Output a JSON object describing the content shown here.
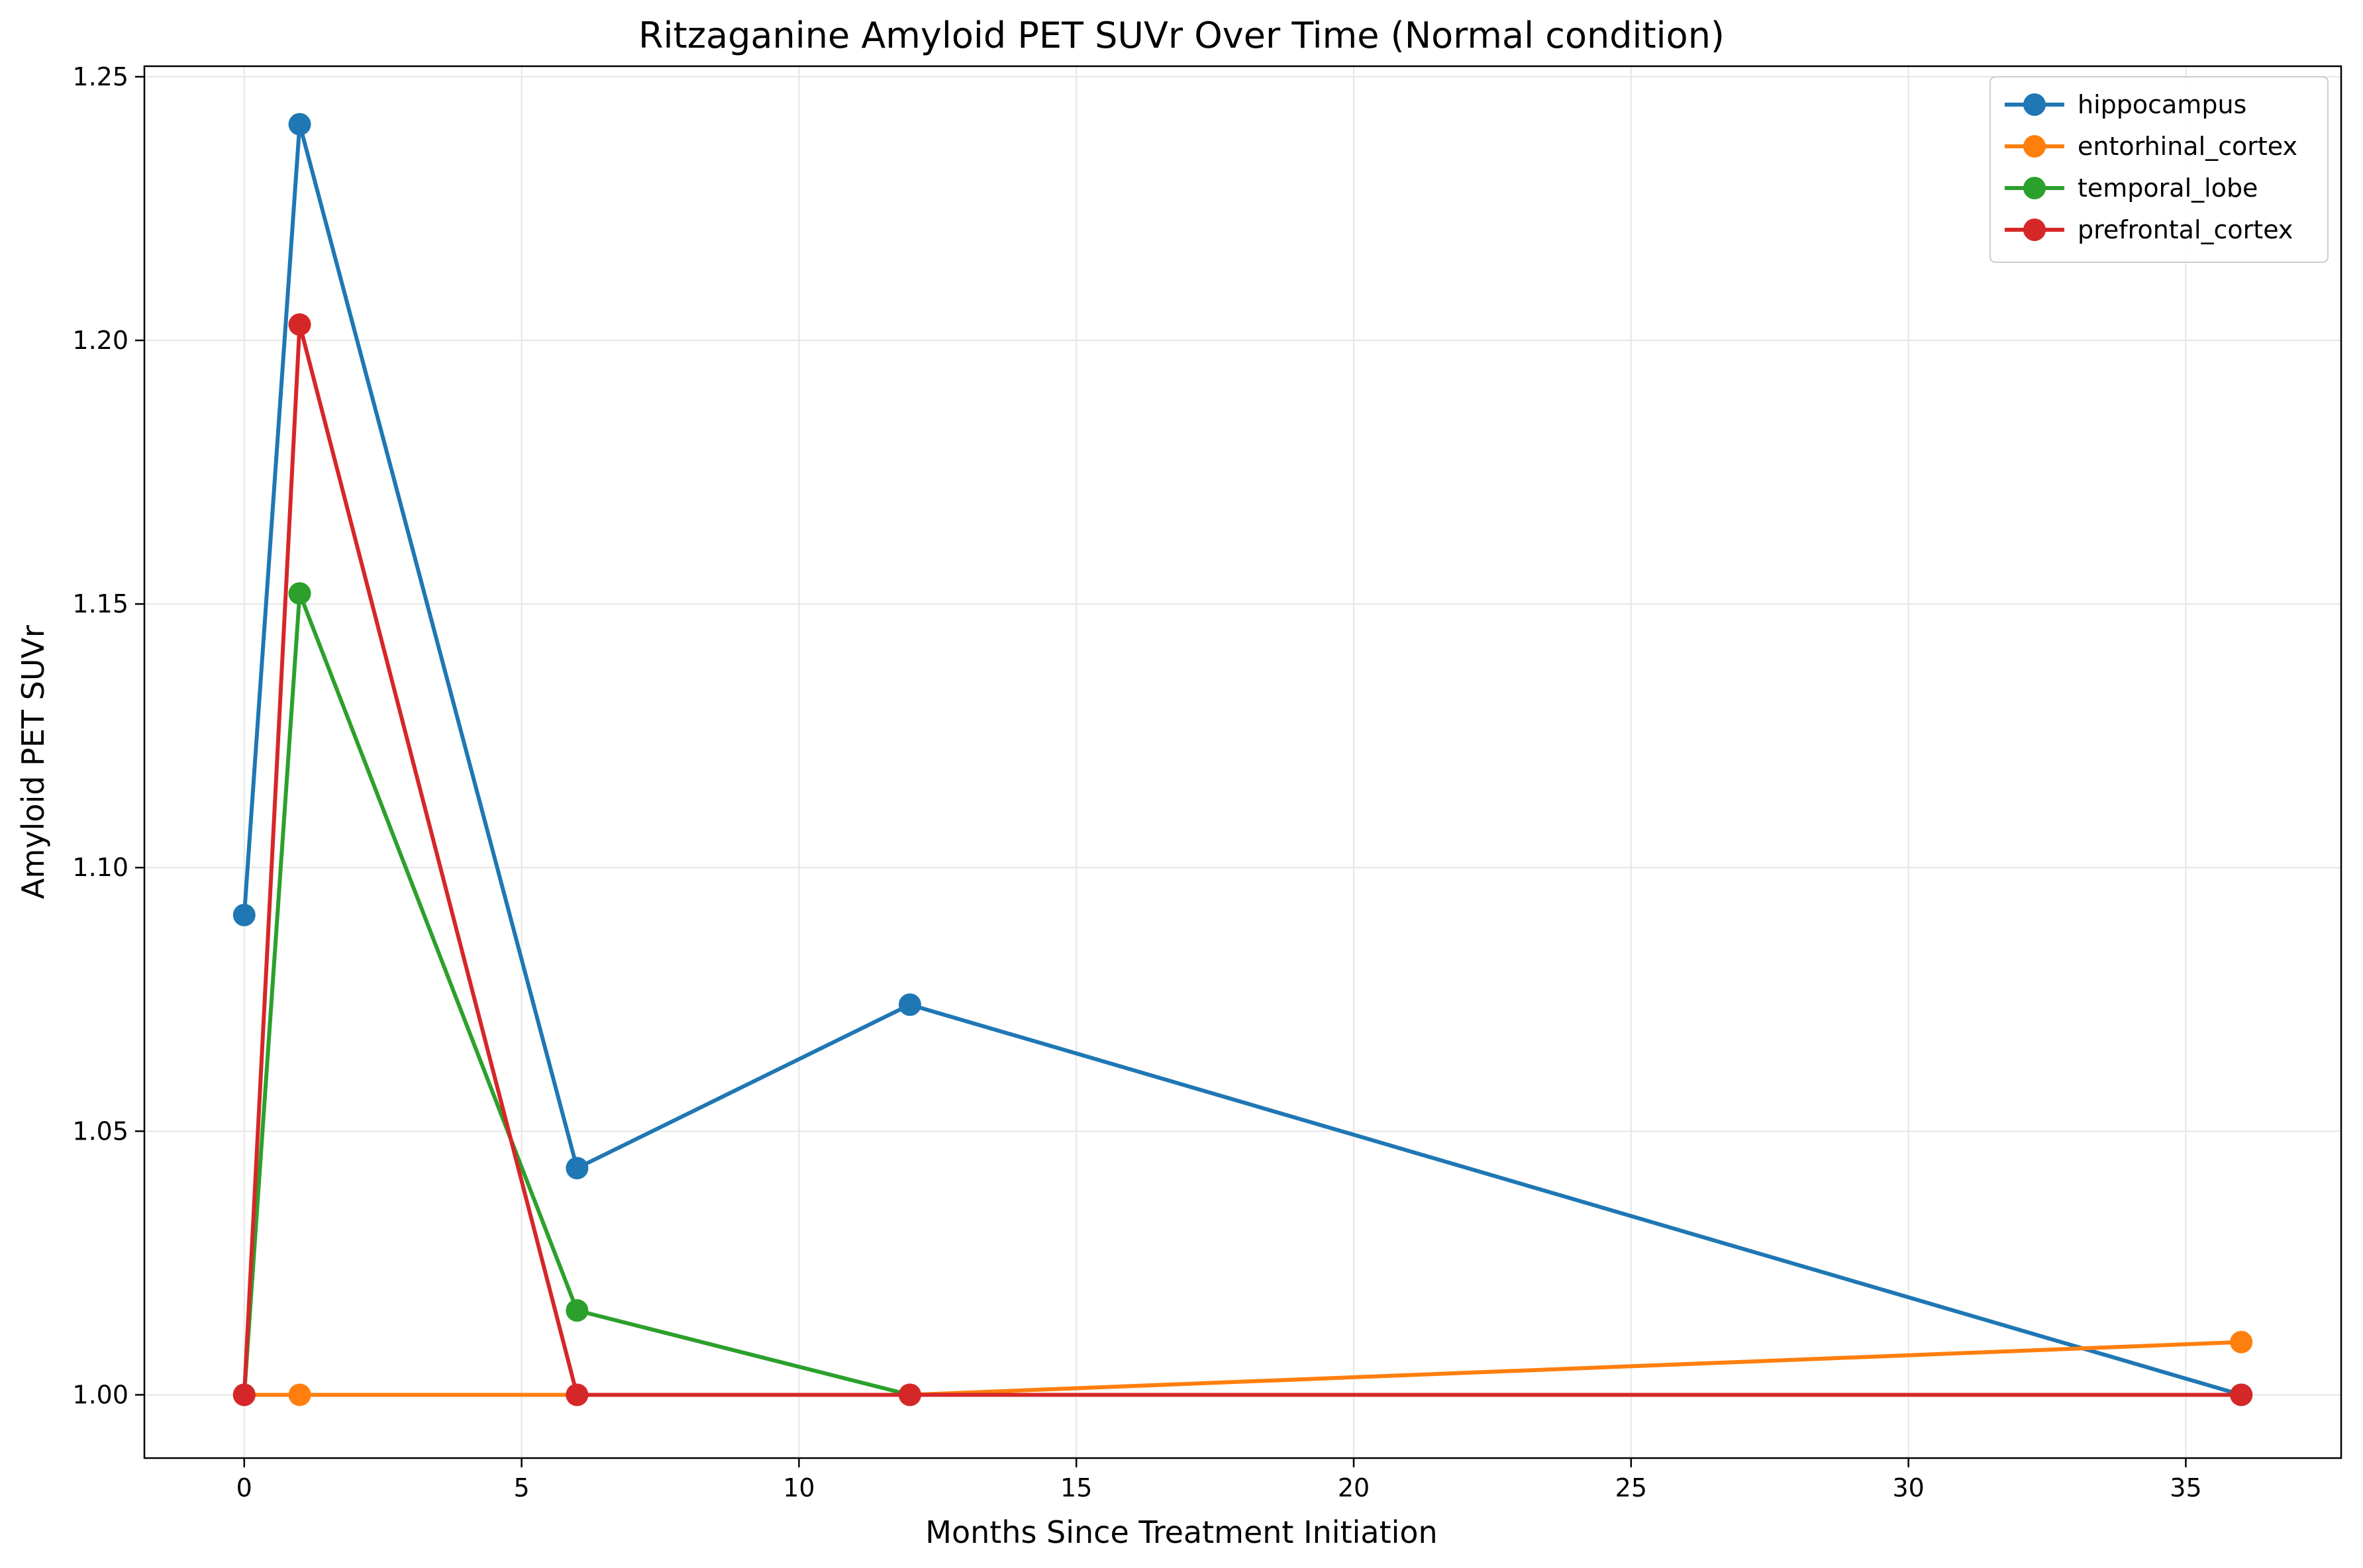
{
  "chart_data": {
    "type": "line",
    "title": "Ritzaganine Amyloid PET SUVr Over Time (Normal condition)",
    "xlabel": "Months Since Treatment Initiation",
    "ylabel": "Amyloid PET SUVr",
    "xlim": [
      -1.8,
      37.8
    ],
    "ylim": [
      0.988,
      1.252
    ],
    "xticks": [
      0,
      5,
      10,
      15,
      20,
      25,
      30,
      35
    ],
    "yticks": [
      1.0,
      1.05,
      1.1,
      1.15,
      1.2,
      1.25
    ],
    "xtick_labels": [
      "0",
      "5",
      "10",
      "15",
      "20",
      "25",
      "30",
      "35"
    ],
    "ytick_labels": [
      "1.00",
      "1.05",
      "1.10",
      "1.15",
      "1.20",
      "1.25"
    ],
    "grid": true,
    "legend_position": "top-right",
    "series": [
      {
        "name": "hippocampus",
        "color": "#1f77b4",
        "points": [
          [
            0,
            1.091
          ],
          [
            1,
            1.241
          ],
          [
            6,
            1.043
          ],
          [
            12,
            1.074
          ],
          [
            36,
            1.0
          ]
        ]
      },
      {
        "name": "entorhinal_cortex",
        "color": "#ff7f0e",
        "points": [
          [
            0,
            1.0
          ],
          [
            1,
            1.0
          ],
          [
            6,
            1.0
          ],
          [
            12,
            1.0
          ],
          [
            36,
            1.01
          ]
        ]
      },
      {
        "name": "temporal_lobe",
        "color": "#2ca02c",
        "points": [
          [
            0,
            1.0
          ],
          [
            1,
            1.152
          ],
          [
            6,
            1.016
          ],
          [
            12,
            1.0
          ],
          [
            36,
            1.0
          ]
        ]
      },
      {
        "name": "prefrontal_cortex",
        "color": "#d62728",
        "points": [
          [
            0,
            1.0
          ],
          [
            1,
            1.203
          ],
          [
            6,
            1.0
          ],
          [
            12,
            1.0
          ],
          [
            36,
            1.0
          ]
        ]
      }
    ]
  }
}
